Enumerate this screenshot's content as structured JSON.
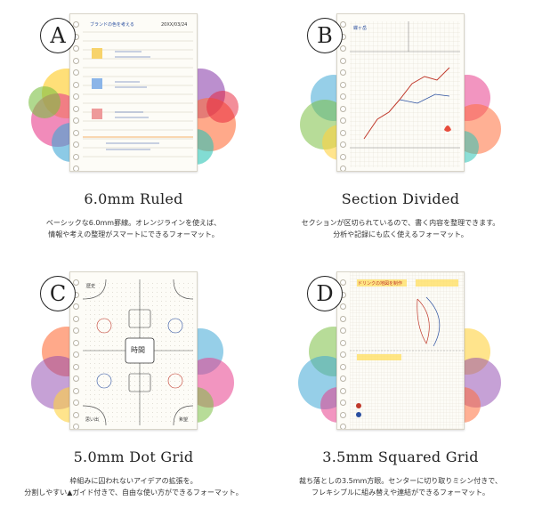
{
  "panels": [
    {
      "letter": "A",
      "title": "6.0mm Ruled",
      "desc_line1": "ベーシックな6.0mm罫線。オレンジラインを使えば、",
      "desc_line2": "情報や考えの整理がスマートにできるフォーマット。",
      "page_heading": "ブランドの色を考える",
      "page_date": "20XX/03/24"
    },
    {
      "letter": "B",
      "title": "Section Divided",
      "desc_line1": "セクションが区切られているので、書く内容を整理できます。",
      "desc_line2": "分析や記録にも広く使えるフォーマット。",
      "page_heading": "蝶ヶ岳"
    },
    {
      "letter": "C",
      "title": "5.0mm Dot Grid",
      "desc_line1": "枠組みに囚われないアイデアの拡張を。",
      "desc_line2": "分割しやすい▲ガイド付きで、自由な使い方ができるフォーマット。",
      "page_center": "時間",
      "page_corner_tl": "歴史",
      "page_corner_bl": "思い出",
      "page_corner_br": "希望"
    },
    {
      "letter": "D",
      "title": "3.5mm Squared Grid",
      "desc_line1": "裁ち落としの3.5mm方眼。センターに切り取りミシン付きで、",
      "desc_line2": "フレキシブルに組み替えや連結ができるフォーマット。",
      "page_heading": "ドリンクの地図を制作"
    }
  ],
  "colors": {
    "ink": "#222222",
    "accent_orange": "#f29a3a",
    "grid": "#cfcabc"
  }
}
